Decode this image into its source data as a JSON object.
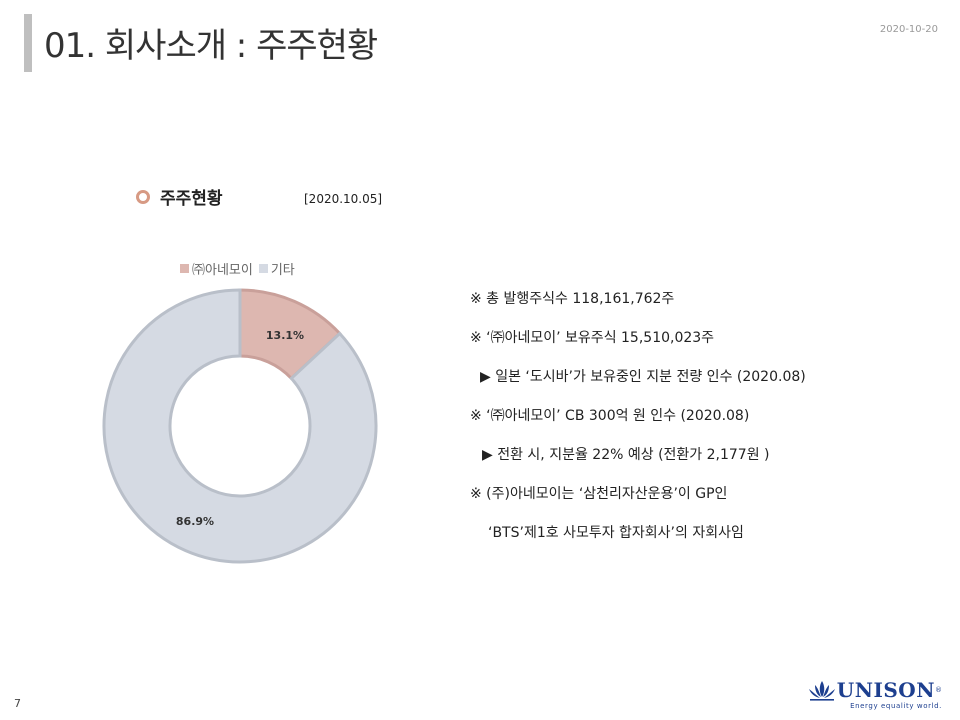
{
  "header": {
    "title": "01. 회사소개 : 주주현황",
    "date": "2020-10-20"
  },
  "section": {
    "title": "주주현황",
    "date": "[2020.10.05]"
  },
  "chart_data": {
    "type": "pie",
    "style": "donut",
    "categories": [
      "㈜아네모이",
      "기타"
    ],
    "values": [
      13.1,
      86.9
    ],
    "labels": [
      "13.1%",
      "86.9%"
    ],
    "colors": [
      "#ddb7b0",
      "#d5dae3"
    ],
    "legend_position": "top"
  },
  "notes": [
    "※ 총 발행주식수 118,161,762주",
    "※ ‘㈜아네모이’ 보유주식 15,510,023주",
    "▶ 일본 ‘도시바’가 보유중인 지분 전량 인수 (2020.08)",
    "※ ‘㈜아네모이’ CB 300억 원 인수 (2020.08)",
    "▶  전환 시, 지분율 22% 예상 (전환가 2,177원 )",
    "※ (주)아네모이는 ‘삼천리자산운용’이 GP인",
    "‘BTS’제1호 사모투자 합자회사’의 자회사임"
  ],
  "footer": {
    "page_number": "7",
    "logo_text": "UNISON",
    "logo_reg": "®",
    "tagline": "Energy equality world."
  }
}
